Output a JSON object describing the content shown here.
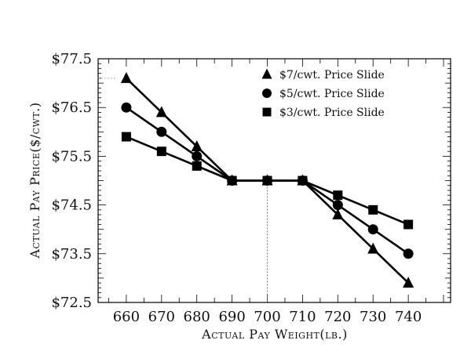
{
  "chart_data": {
    "type": "line",
    "xlabel": "Actual Pay Weight(lb.)",
    "ylabel": "Actual Pay Price($/cwt.)",
    "x": [
      660,
      670,
      680,
      690,
      700,
      710,
      720,
      730,
      740
    ],
    "xlim": [
      652,
      752
    ],
    "ylim": [
      72.5,
      77.5
    ],
    "x_ticks": [
      "660",
      "670",
      "680",
      "690",
      "700",
      "710",
      "720",
      "730",
      "740"
    ],
    "y_ticks": [
      "$72.5",
      "$73.5",
      "$74.5",
      "$75.5",
      "$76.5",
      "$77.5"
    ],
    "y_tick_values": [
      72.5,
      73.5,
      74.5,
      75.5,
      76.5,
      77.5
    ],
    "grid": false,
    "reference_line_x": 700,
    "legend_position": "top-right",
    "series": [
      {
        "name": "$7/cwt. Price Slide",
        "marker": "triangle",
        "values": [
          77.1,
          76.4,
          75.7,
          75.0,
          75.0,
          75.0,
          74.3,
          73.6,
          72.9
        ]
      },
      {
        "name": "$5/cwt. Price Slide",
        "marker": "circle",
        "values": [
          76.5,
          76.0,
          75.5,
          75.0,
          75.0,
          75.0,
          74.5,
          74.0,
          73.5
        ]
      },
      {
        "name": "$3/cwt. Price Slide",
        "marker": "square",
        "values": [
          75.9,
          75.6,
          75.3,
          75.0,
          75.0,
          75.0,
          74.7,
          74.4,
          74.1
        ]
      }
    ],
    "colors": {
      "line": "#000000",
      "reference": "#777777"
    }
  }
}
